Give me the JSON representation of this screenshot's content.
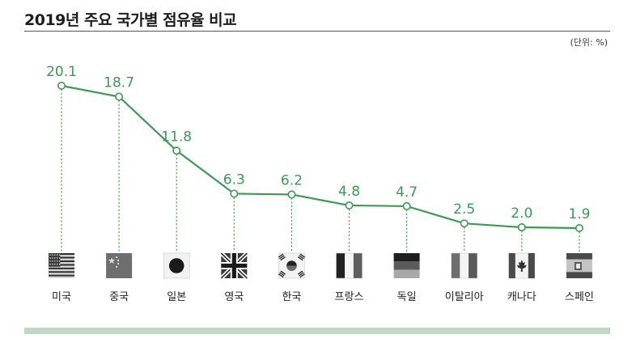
{
  "title": "2019년 주요 국가별 점유율 비교",
  "unit": "(단위: %)",
  "colors": {
    "line": "#3c9a52",
    "footer": "#bfd8c3"
  },
  "chart_data": {
    "type": "line",
    "title": "2019년 주요 국가별 점유율 비교",
    "unit_label": "(단위: %)",
    "categories": [
      "미국",
      "중국",
      "일본",
      "영국",
      "한국",
      "프랑스",
      "독일",
      "이탈리아",
      "캐나다",
      "스페인"
    ],
    "flags": [
      "us-flag",
      "china-flag",
      "japan-flag",
      "uk-flag",
      "korea-flag",
      "france-flag",
      "germany-flag",
      "italy-flag",
      "canada-flag",
      "spain-flag"
    ],
    "series": [
      {
        "values": [
          20.1,
          18.7,
          11.8,
          6.3,
          6.2,
          4.8,
          4.7,
          2.5,
          2.0,
          1.9
        ],
        "labels": [
          "20.1",
          "18.7",
          "11.8",
          "6.3",
          "6.2",
          "4.8",
          "4.7",
          "2.5",
          "2.0",
          "1.9"
        ]
      }
    ],
    "ylim": [
      0,
      20.1
    ],
    "grid": false,
    "legend": "none"
  }
}
